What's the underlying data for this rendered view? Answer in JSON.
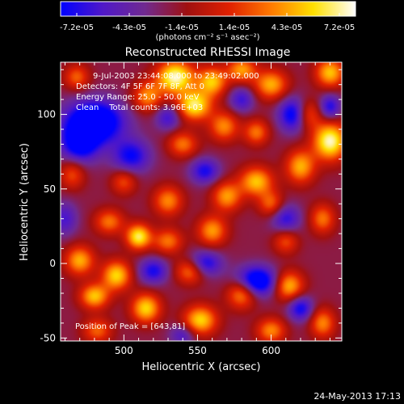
{
  "colorbar": {
    "ticks": [
      "-7.2e-05",
      "-4.3e-05",
      "-1.4e-05",
      "1.4e-05",
      "4.3e-05",
      "7.2e-05"
    ],
    "units": "(photons cm⁻² s⁻¹ asec⁻²)",
    "range": [
      -7.2e-05,
      7.2e-05
    ],
    "colors": [
      "#0000ff",
      "#5018c8",
      "#702a90",
      "#a01010",
      "#e02000",
      "#ff7a00",
      "#ffe000",
      "#ffffff"
    ]
  },
  "chart_data": {
    "type": "heatmap",
    "title": "Reconstructed RHESSI Image",
    "xlabel": "Heliocentric X (arcsec)",
    "ylabel": "Heliocentric Y (arcsec)",
    "xlim": [
      457,
      648
    ],
    "ylim": [
      -52,
      135
    ],
    "xticks": [
      500,
      550,
      600
    ],
    "yticks": [
      -50,
      0,
      50,
      100
    ],
    "annotations": [
      "9-Jul-2003 23:44:08.000 to 23:49:02.000",
      "Detectors: 4F 5F 6F 7F 8F, Att 0",
      "Energy Range: 25.0 - 50.0 keV",
      "Clean    Total counts: 3.96E+03"
    ],
    "peak_label": "Position of Peak = [643,81]",
    "peak_position": [
      643,
      81
    ],
    "blobs": [
      {
        "x": 535,
        "y": 125,
        "sx": 9,
        "sy": 8,
        "v": 1.0
      },
      {
        "x": 548,
        "y": 106,
        "sx": 8,
        "sy": 7,
        "v": 0.9
      },
      {
        "x": 560,
        "y": 122,
        "sx": 7,
        "sy": 7,
        "v": 0.75
      },
      {
        "x": 516,
        "y": 112,
        "sx": 7,
        "sy": 7,
        "v": 0.6
      },
      {
        "x": 580,
        "y": 130,
        "sx": 7,
        "sy": 6,
        "v": 0.65
      },
      {
        "x": 600,
        "y": 120,
        "sx": 8,
        "sy": 7,
        "v": 0.7
      },
      {
        "x": 640,
        "y": 82,
        "sx": 8,
        "sy": 9,
        "v": 1.0
      },
      {
        "x": 640,
        "y": 128,
        "sx": 7,
        "sy": 7,
        "v": 0.75
      },
      {
        "x": 625,
        "y": 100,
        "sx": 6,
        "sy": 7,
        "v": 0.5
      },
      {
        "x": 568,
        "y": 92,
        "sx": 7,
        "sy": 7,
        "v": 0.6
      },
      {
        "x": 590,
        "y": 88,
        "sx": 6,
        "sy": 6,
        "v": 0.55
      },
      {
        "x": 540,
        "y": 80,
        "sx": 7,
        "sy": 6,
        "v": 0.55
      },
      {
        "x": 620,
        "y": 65,
        "sx": 7,
        "sy": 8,
        "v": 0.7
      },
      {
        "x": 590,
        "y": 55,
        "sx": 8,
        "sy": 7,
        "v": 0.75
      },
      {
        "x": 570,
        "y": 45,
        "sx": 7,
        "sy": 7,
        "v": 0.65
      },
      {
        "x": 600,
        "y": 40,
        "sx": 6,
        "sy": 6,
        "v": 0.5
      },
      {
        "x": 530,
        "y": 42,
        "sx": 7,
        "sy": 7,
        "v": 0.6
      },
      {
        "x": 500,
        "y": 55,
        "sx": 6,
        "sy": 6,
        "v": 0.45
      },
      {
        "x": 510,
        "y": 18,
        "sx": 6,
        "sy": 6,
        "v": 0.9
      },
      {
        "x": 490,
        "y": 28,
        "sx": 7,
        "sy": 6,
        "v": 0.55
      },
      {
        "x": 530,
        "y": 15,
        "sx": 7,
        "sy": 6,
        "v": 0.55
      },
      {
        "x": 560,
        "y": 22,
        "sx": 7,
        "sy": 7,
        "v": 0.65
      },
      {
        "x": 610,
        "y": 15,
        "sx": 6,
        "sy": 6,
        "v": 0.45
      },
      {
        "x": 635,
        "y": 30,
        "sx": 6,
        "sy": 7,
        "v": 0.55
      },
      {
        "x": 470,
        "y": 2,
        "sx": 7,
        "sy": 7,
        "v": 0.7
      },
      {
        "x": 495,
        "y": -8,
        "sx": 7,
        "sy": 7,
        "v": 0.8
      },
      {
        "x": 480,
        "y": -22,
        "sx": 7,
        "sy": 6,
        "v": 0.75
      },
      {
        "x": 515,
        "y": -30,
        "sx": 7,
        "sy": 7,
        "v": 0.8
      },
      {
        "x": 545,
        "y": -5,
        "sx": 7,
        "sy": 6,
        "v": 0.6
      },
      {
        "x": 552,
        "y": -38,
        "sx": 8,
        "sy": 7,
        "v": 0.8
      },
      {
        "x": 580,
        "y": -20,
        "sx": 7,
        "sy": 7,
        "v": 0.7
      },
      {
        "x": 612,
        "y": -15,
        "sx": 7,
        "sy": 7,
        "v": 0.75
      },
      {
        "x": 600,
        "y": -45,
        "sx": 7,
        "sy": 6,
        "v": 0.6
      },
      {
        "x": 635,
        "y": -40,
        "sx": 6,
        "sy": 7,
        "v": 0.6
      },
      {
        "x": 465,
        "y": 60,
        "sx": 6,
        "sy": 7,
        "v": 0.45
      },
      {
        "x": 468,
        "y": 125,
        "sx": 6,
        "sy": 6,
        "v": 0.5
      },
      {
        "x": 482,
        "y": -45,
        "sx": 7,
        "sy": 6,
        "v": 0.5
      },
      {
        "x": 480,
        "y": 95,
        "sx": 14,
        "sy": 10,
        "v": -1.0
      },
      {
        "x": 470,
        "y": 80,
        "sx": 9,
        "sy": 9,
        "v": -0.7
      },
      {
        "x": 590,
        "y": -12,
        "sx": 10,
        "sy": 7,
        "v": -0.9
      },
      {
        "x": 555,
        "y": 0,
        "sx": 8,
        "sy": 6,
        "v": -0.6
      },
      {
        "x": 615,
        "y": 100,
        "sx": 7,
        "sy": 8,
        "v": -0.7
      },
      {
        "x": 640,
        "y": 105,
        "sx": 5,
        "sy": 6,
        "v": -0.55
      },
      {
        "x": 620,
        "y": -30,
        "sx": 6,
        "sy": 6,
        "v": -0.6
      },
      {
        "x": 520,
        "y": -5,
        "sx": 7,
        "sy": 6,
        "v": -0.55
      },
      {
        "x": 505,
        "y": 72,
        "sx": 9,
        "sy": 8,
        "v": -0.6
      },
      {
        "x": 555,
        "y": 62,
        "sx": 7,
        "sy": 6,
        "v": -0.55
      },
      {
        "x": 610,
        "y": 30,
        "sx": 7,
        "sy": 7,
        "v": -0.5
      },
      {
        "x": 530,
        "y": 98,
        "sx": 6,
        "sy": 6,
        "v": -0.45
      },
      {
        "x": 580,
        "y": 110,
        "sx": 6,
        "sy": 6,
        "v": -0.45
      },
      {
        "x": 460,
        "y": 30,
        "sx": 6,
        "sy": 8,
        "v": -0.4
      },
      {
        "x": 540,
        "y": -48,
        "sx": 6,
        "sy": 5,
        "v": -0.4
      }
    ]
  },
  "footer": {
    "timestamp": "24-May-2013 17:13"
  }
}
